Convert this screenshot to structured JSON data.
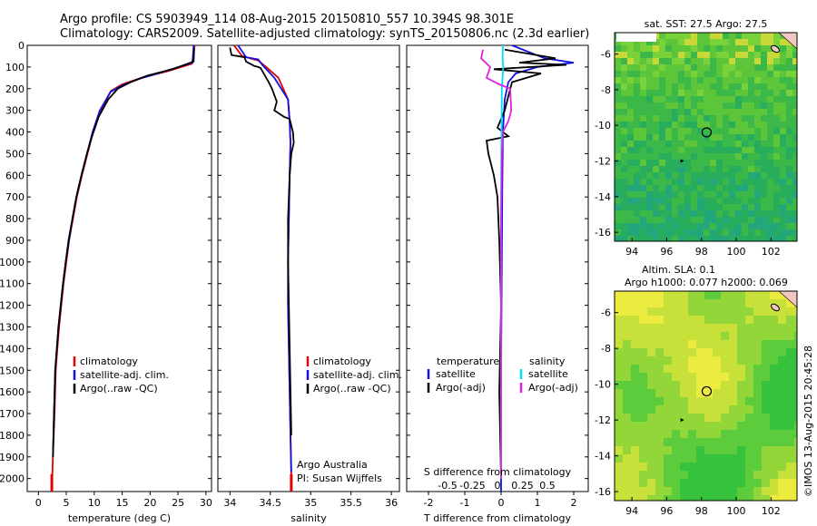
{
  "header": {
    "line1": "Argo profile: CS 5903949_114 08-Aug-2015 20150810_557 10.394S 98.301E",
    "line2": "Climatology: CARS2009. Satellite-adjusted climatology: synTS_20150806.nc (2.3d earlier)"
  },
  "footer_stamp": "©IMOS 13-Aug-2015 20:45:28",
  "colors": {
    "climatology": "#e00000",
    "satellite": "#1010e0",
    "argo": "#000000",
    "sat_salinity": "#00e0f0",
    "argo_salinity": "#e020e0"
  },
  "chart_data": [
    {
      "id": "temperature",
      "type": "line",
      "xlabel": "temperature (deg C)",
      "ylabel": "",
      "xlim": [
        -2,
        31
      ],
      "ylim": [
        2060,
        0
      ],
      "xticks": [
        0,
        5,
        10,
        15,
        20,
        25,
        30
      ],
      "xtick_labels": [
        "0",
        "5",
        "10",
        "15",
        "20",
        "25",
        "30"
      ],
      "yticks": [
        0,
        100,
        200,
        300,
        400,
        500,
        600,
        700,
        800,
        900,
        1000,
        1100,
        1200,
        1300,
        1400,
        1500,
        1600,
        1700,
        1800,
        1900,
        2000
      ],
      "ytick_labels": [
        "0",
        "100",
        "200",
        "300",
        "400",
        "500",
        "600",
        "700",
        "800",
        "900",
        "1000",
        "1100",
        "1200",
        "1300",
        "1400",
        "1500",
        "1600",
        "1700",
        "1800",
        "1900",
        "2000"
      ],
      "legend": [
        "climatology",
        "satellite-adj. clim.",
        "Argo(..raw -QC)"
      ],
      "series": [
        {
          "name": "climatology",
          "x": [
            28.0,
            27.5,
            23,
            18.5,
            15,
            13,
            11.2,
            9.8,
            8.8,
            7.8,
            6.9,
            6.2,
            5.5,
            5.0,
            4.5,
            4.1,
            3.7,
            3.4,
            3.1,
            2.9,
            2.6,
            2.4
          ],
          "y": [
            0,
            85,
            120,
            150,
            180,
            210,
            300,
            400,
            500,
            600,
            700,
            800,
            900,
            1000,
            1100,
            1200,
            1300,
            1400,
            1500,
            1700,
            1900,
            2060
          ]
        },
        {
          "name": "satellite-adj. clim.",
          "x": [
            27.8,
            27.6,
            22,
            18,
            15,
            12.9,
            11.0,
            9.7,
            8.7,
            7.7,
            6.8,
            6.1,
            5.5,
            4.9,
            4.4,
            4.0,
            3.6,
            3.3,
            3.0,
            2.8,
            2.6
          ],
          "y": [
            0,
            80,
            125,
            155,
            185,
            215,
            300,
            400,
            500,
            600,
            700,
            800,
            900,
            1000,
            1100,
            1200,
            1300,
            1400,
            1500,
            1700,
            1900
          ]
        },
        {
          "name": "Argo(..raw -QC)",
          "x": [
            27.9,
            27.8,
            24,
            19.5,
            16.5,
            14.2,
            12.5,
            10.8,
            9.6,
            8.7,
            7.7,
            6.8,
            6.1,
            5.4,
            4.9,
            4.4,
            4.0,
            3.6,
            3.3,
            3.0,
            2.8,
            2.6
          ],
          "y": [
            10,
            75,
            110,
            140,
            170,
            200,
            250,
            330,
            420,
            500,
            600,
            700,
            800,
            900,
            1000,
            1100,
            1200,
            1300,
            1400,
            1500,
            1700,
            1900
          ]
        }
      ]
    },
    {
      "id": "salinity",
      "type": "line",
      "xlabel": "salinity",
      "xlim": [
        33.85,
        36.1
      ],
      "ylim": [
        2060,
        0
      ],
      "xticks": [
        34,
        34.5,
        35,
        35.5,
        36
      ],
      "xtick_labels": [
        "34",
        "34.5",
        "35",
        "35.5",
        "36"
      ],
      "legend": [
        "climatology",
        "satellite-adj. clim.",
        "Argo(..raw -QC)"
      ],
      "annotation": [
        "Argo Australia",
        "PI: Susan Wijffels"
      ],
      "series": [
        {
          "name": "climatology",
          "x": [
            34.05,
            34.15,
            34.35,
            34.45,
            34.6,
            34.72,
            34.74,
            34.75,
            34.74,
            34.73,
            34.72,
            34.72,
            34.73,
            34.74,
            34.75,
            34.76,
            34.76
          ],
          "y": [
            0,
            50,
            70,
            100,
            150,
            250,
            350,
            450,
            600,
            800,
            1000,
            1200,
            1400,
            1600,
            1800,
            2000,
            2060
          ]
        },
        {
          "name": "satellite-adj. clim.",
          "x": [
            34.1,
            34.2,
            34.35,
            34.4,
            34.55,
            34.72,
            34.74,
            34.75,
            34.74,
            34.73,
            34.72,
            34.72,
            34.73,
            34.74,
            34.75,
            34.76
          ],
          "y": [
            0,
            55,
            65,
            90,
            150,
            250,
            350,
            450,
            600,
            800,
            1000,
            1200,
            1400,
            1600,
            1800,
            1970
          ]
        },
        {
          "name": "Argo(..raw -QC)",
          "x": [
            34.0,
            34.02,
            34.18,
            34.2,
            34.25,
            34.3,
            34.35,
            34.38,
            34.48,
            34.52,
            34.58,
            34.55,
            34.67,
            34.74,
            34.76,
            34.78,
            34.79,
            34.76,
            34.74,
            34.73,
            34.72,
            34.72,
            34.73,
            34.74,
            34.75,
            34.76
          ],
          "y": [
            10,
            45,
            55,
            75,
            85,
            95,
            100,
            105,
            170,
            200,
            260,
            300,
            330,
            340,
            370,
            400,
            450,
            500,
            600,
            700,
            800,
            1000,
            1200,
            1400,
            1600,
            1800
          ]
        }
      ]
    },
    {
      "id": "differences",
      "type": "line",
      "xlabel": "T difference from climatology",
      "xlabel_top": "S difference from climatology",
      "xlim": [
        -2.6,
        2.4
      ],
      "ylim": [
        2060,
        0
      ],
      "xticks": [
        -2,
        -1,
        0,
        1,
        2
      ],
      "xtick_labels": [
        "-2",
        "-1",
        "0",
        "1",
        "2"
      ],
      "sticks": [
        -0.5,
        -0.25,
        0,
        0.25,
        0.5
      ],
      "stick_labels": [
        "-0.5",
        "-0.25",
        "0",
        "0.25",
        "0.5"
      ],
      "legend_headers": [
        "temperature",
        "salinity"
      ],
      "legend": [
        "satellite",
        "Argo(-adj)",
        "satellite",
        "Argo(-adj)"
      ],
      "series": [
        {
          "name": "temperature satellite",
          "x": [
            0.3,
            1.2,
            2.0,
            1.0,
            0.4,
            0.2,
            0.1,
            0.05,
            0.03,
            0.02,
            0.0,
            0.0
          ],
          "y": [
            0,
            60,
            80,
            100,
            130,
            170,
            250,
            400,
            700,
            1000,
            1500,
            2060
          ]
        },
        {
          "name": "temperature Argo(-adj)",
          "x": [
            0.1,
            1.5,
            0.5,
            1.8,
            -0.2,
            1.1,
            0.3,
            0.1,
            -0.1,
            0.2,
            -0.4,
            -0.35,
            -0.2,
            -0.1,
            -0.05,
            0.0,
            -0.05,
            0.0
          ],
          "y": [
            20,
            60,
            80,
            90,
            110,
            130,
            170,
            300,
            380,
            420,
            440,
            500,
            600,
            700,
            900,
            1200,
            1600,
            2000
          ]
        },
        {
          "name": "salinity satellite",
          "x": [
            0.05,
            0.04,
            0.06,
            0.02,
            0.01,
            0.0,
            0.0,
            0.0
          ],
          "y": [
            0,
            60,
            100,
            200,
            400,
            800,
            1400,
            2000
          ]
        },
        {
          "name": "salinity Argo(-adj)",
          "x": [
            -0.5,
            -0.55,
            -0.3,
            -0.4,
            -0.05,
            0.25,
            0.28,
            0.2,
            0.05,
            0.02,
            0.0,
            0.0,
            0.0
          ],
          "y": [
            20,
            60,
            100,
            150,
            180,
            200,
            300,
            350,
            400,
            500,
            800,
            1400,
            2000
          ]
        }
      ]
    },
    {
      "id": "sst_map",
      "type": "heatmap",
      "title": "sat. SST: 27.5 Argo: 27.5",
      "xlim": [
        93,
        103.5
      ],
      "ylim": [
        -16.5,
        -4.8
      ],
      "xticks": [
        94,
        96,
        98,
        100,
        102
      ],
      "xtick_labels": [
        "94",
        "96",
        "98",
        "100",
        "102"
      ],
      "yticks": [
        -6,
        -8,
        -10,
        -12,
        -14,
        -16
      ],
      "ytick_labels": [
        "-6",
        "-8",
        "-10",
        "-12",
        "-14",
        "-16"
      ],
      "marker": [
        98.3,
        -10.394
      ],
      "track": [
        [
          96.9,
          -12.0
        ]
      ]
    },
    {
      "id": "sla_map",
      "type": "heatmap",
      "title": "Altim. SLA: 0.1",
      "subtitle": "Argo h1000: 0.077 h2000: 0.069",
      "xlim": [
        93,
        103.5
      ],
      "ylim": [
        -16.5,
        -4.8
      ],
      "xticks": [
        94,
        96,
        98,
        100,
        102
      ],
      "xtick_labels": [
        "94",
        "96",
        "98",
        "100",
        "102"
      ],
      "yticks": [
        -6,
        -8,
        -10,
        -12,
        -14,
        -16
      ],
      "ytick_labels": [
        "-6",
        "-8",
        "-10",
        "-12",
        "-14",
        "-16"
      ],
      "marker": [
        98.3,
        -10.394
      ],
      "track": [
        [
          96.9,
          -12.0
        ]
      ]
    }
  ]
}
